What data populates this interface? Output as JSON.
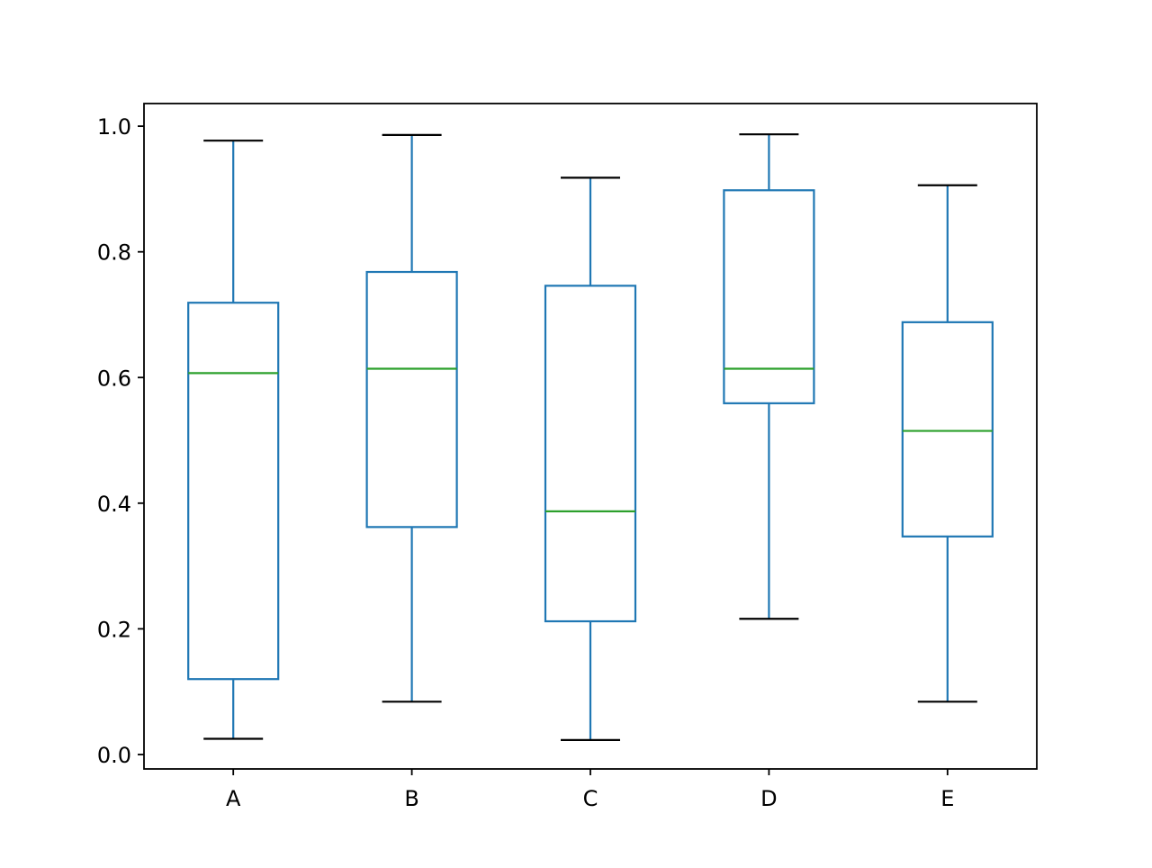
{
  "chart_data": {
    "type": "box",
    "title": "",
    "xlabel": "",
    "ylabel": "",
    "categories": [
      "A",
      "B",
      "C",
      "D",
      "E"
    ],
    "ylim": [
      -0.023,
      1.036
    ],
    "yticks": [
      0.0,
      0.2,
      0.4,
      0.6,
      0.8,
      1.0
    ],
    "ytick_labels": [
      "0.0",
      "0.2",
      "0.4",
      "0.6",
      "0.8",
      "1.0"
    ],
    "grid": false,
    "legend": "none",
    "boxes": [
      {
        "name": "A",
        "whisker_low": 0.025,
        "q1": 0.12,
        "median": 0.607,
        "q3": 0.719,
        "whisker_high": 0.977
      },
      {
        "name": "B",
        "whisker_low": 0.084,
        "q1": 0.362,
        "median": 0.614,
        "q3": 0.768,
        "whisker_high": 0.986
      },
      {
        "name": "C",
        "whisker_low": 0.023,
        "q1": 0.212,
        "median": 0.387,
        "q3": 0.746,
        "whisker_high": 0.918
      },
      {
        "name": "D",
        "whisker_low": 0.216,
        "q1": 0.559,
        "median": 0.614,
        "q3": 0.898,
        "whisker_high": 0.987
      },
      {
        "name": "E",
        "whisker_low": 0.084,
        "q1": 0.347,
        "median": 0.515,
        "q3": 0.688,
        "whisker_high": 0.906
      }
    ],
    "colors": {
      "box": "#1f77b4",
      "median": "#2ca02c",
      "cap": "#000000",
      "axes": "#000000"
    }
  }
}
